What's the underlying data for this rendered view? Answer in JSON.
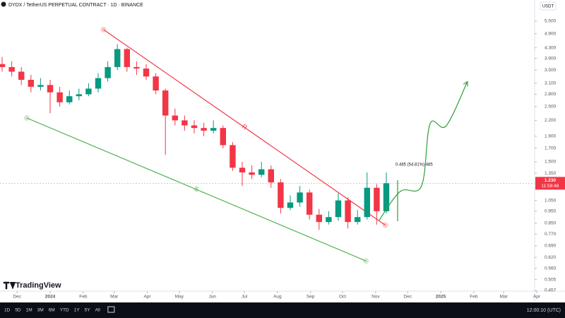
{
  "header": {
    "symbol": "DYDX / TetherUS PERPETUAL CONTRACT · 1D · BINANCE",
    "quote": "USDT"
  },
  "chart_data": {
    "type": "candlestick",
    "log_scale": true,
    "up_color": "#089981",
    "down_color": "#f23645",
    "x": [
      -14,
      -5,
      4,
      13,
      22,
      31,
      40,
      49,
      58,
      67,
      76,
      85,
      94,
      103,
      112,
      121,
      130,
      139,
      148,
      157,
      166,
      175,
      184,
      193,
      202,
      211,
      220,
      229,
      238,
      247,
      256,
      265,
      274,
      283,
      292,
      301,
      310,
      319,
      328,
      337,
      346
    ],
    "open": [
      3.7,
      3.6,
      3.45,
      3.2,
      3.0,
      3.05,
      2.85,
      2.6,
      2.75,
      2.8,
      2.95,
      3.25,
      3.6,
      4.25,
      3.6,
      3.55,
      3.3,
      2.9,
      2.3,
      2.2,
      2.1,
      2.05,
      2.0,
      2.05,
      1.75,
      1.42,
      1.36,
      1.33,
      1.4,
      1.24,
      0.98,
      1.03,
      1.13,
      0.92,
      0.86,
      0.9,
      1.05,
      0.86,
      0.9,
      1.18,
      0.95
    ],
    "high": [
      3.95,
      3.8,
      3.6,
      3.35,
      3.25,
      3.2,
      3.0,
      2.9,
      2.95,
      3.1,
      3.4,
      3.8,
      4.45,
      4.3,
      3.8,
      3.7,
      3.4,
      2.95,
      2.45,
      2.3,
      2.2,
      2.15,
      2.2,
      2.1,
      1.8,
      1.5,
      1.45,
      1.5,
      1.45,
      1.28,
      1.1,
      1.2,
      1.16,
      0.97,
      0.95,
      1.12,
      1.08,
      0.96,
      1.36,
      1.22,
      1.36
    ],
    "low": [
      3.45,
      3.3,
      3.05,
      2.85,
      2.9,
      2.35,
      2.5,
      2.55,
      2.65,
      2.75,
      2.85,
      3.15,
      3.5,
      3.45,
      3.35,
      3.2,
      2.8,
      1.6,
      2.1,
      2.0,
      1.95,
      1.9,
      1.95,
      1.7,
      1.38,
      1.2,
      1.28,
      1.3,
      1.18,
      0.93,
      0.96,
      0.99,
      0.88,
      0.8,
      0.84,
      0.87,
      0.81,
      0.84,
      0.88,
      0.84,
      0.93
    ],
    "close": [
      3.6,
      3.45,
      3.2,
      3.0,
      3.05,
      2.85,
      2.6,
      2.75,
      2.8,
      2.95,
      3.25,
      3.6,
      4.25,
      3.6,
      3.55,
      3.3,
      2.9,
      2.3,
      2.2,
      2.1,
      2.05,
      2.0,
      2.05,
      1.75,
      1.42,
      1.36,
      1.33,
      1.4,
      1.24,
      0.98,
      1.03,
      1.13,
      0.92,
      0.86,
      0.9,
      1.05,
      0.86,
      0.9,
      1.18,
      0.95,
      1.23
    ],
    "xlim": [
      -16,
      485
    ],
    "xticks": [
      {
        "value": 0,
        "label": "Dec"
      },
      {
        "value": 31,
        "label": "2024"
      },
      {
        "value": 62,
        "label": "Feb"
      },
      {
        "value": 91,
        "label": "Mar"
      },
      {
        "value": 122,
        "label": "Apr"
      },
      {
        "value": 152,
        "label": "May"
      },
      {
        "value": 183,
        "label": "Jun"
      },
      {
        "value": 213,
        "label": "Jul"
      },
      {
        "value": 244,
        "label": "Aug"
      },
      {
        "value": 275,
        "label": "Sep"
      },
      {
        "value": 305,
        "label": "Oct"
      },
      {
        "value": 336,
        "label": "Nov"
      },
      {
        "value": 366,
        "label": "Dec"
      },
      {
        "value": 397,
        "label": "2025"
      },
      {
        "value": 428,
        "label": "Feb"
      },
      {
        "value": 456,
        "label": "Mar"
      },
      {
        "value": 487,
        "label": "Apr"
      }
    ],
    "ylim": [
      0.454,
      6.69
    ],
    "yticks": [
      {
        "value": 5.5,
        "label": "5.500"
      },
      {
        "value": 4.9,
        "label": "4.900"
      },
      {
        "value": 4.3,
        "label": "4.300"
      },
      {
        "value": 3.9,
        "label": "3.900"
      },
      {
        "value": 3.5,
        "label": "3.500"
      },
      {
        "value": 3.1,
        "label": "3.100"
      },
      {
        "value": 2.8,
        "label": "2.800"
      },
      {
        "value": 2.5,
        "label": "2.500"
      },
      {
        "value": 2.2,
        "label": "2.200"
      },
      {
        "value": 1.9,
        "label": "1.900"
      },
      {
        "value": 1.7,
        "label": "1.700"
      },
      {
        "value": 1.5,
        "label": "1.500"
      },
      {
        "value": 1.35,
        "label": "1.350"
      },
      {
        "value": 1.05,
        "label": "1.050"
      },
      {
        "value": 0.95,
        "label": "0.950"
      },
      {
        "value": 0.85,
        "label": "0.850"
      },
      {
        "value": 0.77,
        "label": "0.770"
      },
      {
        "value": 0.69,
        "label": "0.690"
      },
      {
        "value": 0.62,
        "label": "0.620"
      },
      {
        "value": 0.56,
        "label": "0.560"
      },
      {
        "value": 0.505,
        "label": "0.505"
      },
      {
        "value": 0.457,
        "label": "0.457"
      }
    ],
    "lines": [
      {
        "name": "R",
        "color": "#f23645",
        "x": [
          81,
          345
        ],
        "y": [
          5.09,
          0.836
        ]
      },
      {
        "name": "S",
        "color": "#4caf50",
        "x": [
          9,
          327
        ],
        "y": [
          2.25,
          0.6
        ]
      }
    ],
    "projection": {
      "color": "#2e9e3a",
      "x": [
        339,
        359,
        379,
        387,
        402,
        422
      ],
      "y": [
        0.87,
        1.14,
        1.2,
        2.13,
        2.09,
        3.15
      ]
    },
    "measure": "0.485 (54.81%) 485",
    "last_price": {
      "value": 1.23,
      "label": "1.230"
    },
    "countdown": "11:59:48",
    "watermark": "TradingView"
  },
  "toolbar": {
    "ranges": [
      "1D",
      "5D",
      "1M",
      "3M",
      "6M",
      "YTD",
      "1Y",
      "5Y",
      "All"
    ],
    "clock": "12:00:10 (UTC)"
  }
}
